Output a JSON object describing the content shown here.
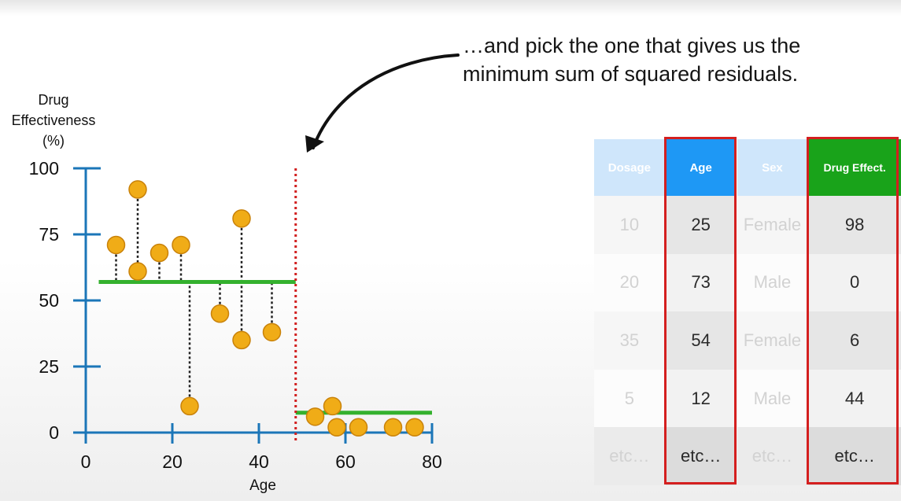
{
  "caption": {
    "line1": "…and pick the one that gives us the",
    "line2": "minimum sum of squared residuals."
  },
  "chart_data": {
    "type": "scatter",
    "ylabel_lines": [
      "Drug",
      "Effectiveness",
      "(%)"
    ],
    "xlabel": "Age",
    "xlim": [
      0,
      80
    ],
    "ylim": [
      0,
      100
    ],
    "x_ticks": [
      0,
      20,
      40,
      60,
      80
    ],
    "y_ticks": [
      0,
      25,
      50,
      75,
      100
    ],
    "points": [
      {
        "x": 7,
        "y": 71
      },
      {
        "x": 12,
        "y": 92
      },
      {
        "x": 12,
        "y": 61
      },
      {
        "x": 17,
        "y": 68
      },
      {
        "x": 22,
        "y": 71
      },
      {
        "x": 24,
        "y": 10
      },
      {
        "x": 31,
        "y": 45
      },
      {
        "x": 36,
        "y": 81
      },
      {
        "x": 36,
        "y": 35
      },
      {
        "x": 43,
        "y": 38
      },
      {
        "x": 53,
        "y": 6
      },
      {
        "x": 57,
        "y": 10
      },
      {
        "x": 58,
        "y": 2
      },
      {
        "x": 63,
        "y": 2
      },
      {
        "x": 71,
        "y": 2
      },
      {
        "x": 76,
        "y": 2
      }
    ],
    "split_x": 48.5,
    "fit_segments": [
      {
        "x_start": 3,
        "x_end": 48.5,
        "y": 57
      },
      {
        "x_start": 48.5,
        "x_end": 80,
        "y": 7.5
      }
    ],
    "colors": {
      "axis": "#1b76b8",
      "point_fill": "#f0ac17",
      "point_stroke": "#c9820a",
      "fit_line": "#34b12e",
      "split_line": "#d11f1f",
      "residual": "#222222"
    }
  },
  "table": {
    "columns": [
      "Dosage",
      "Age",
      "Sex",
      "Drug Effect."
    ],
    "rows": [
      [
        "10",
        "25",
        "Female",
        "98"
      ],
      [
        "20",
        "73",
        "Male",
        "0"
      ],
      [
        "35",
        "54",
        "Female",
        "6"
      ],
      [
        "5",
        "12",
        "Male",
        "44"
      ],
      [
        "etc…",
        "etc…",
        "etc…",
        "etc…"
      ]
    ],
    "highlight_color": "#d41f1f"
  }
}
